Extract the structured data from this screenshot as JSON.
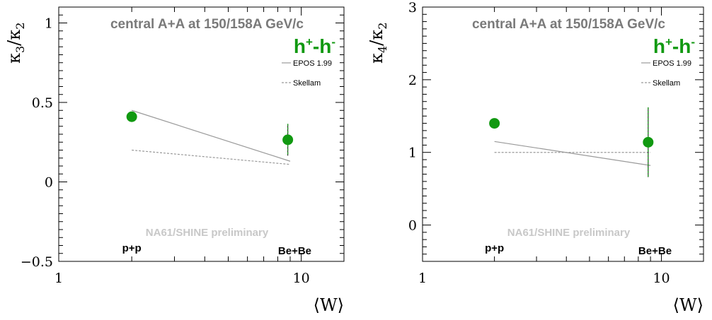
{
  "chart_data": [
    {
      "type": "scatter",
      "xlabel": "⟨W⟩",
      "ylabel_main": "κ",
      "ylabel_num_sub": "3",
      "ylabel_slash": "/",
      "ylabel_den_sub": "2",
      "x_scale": "log",
      "xlim": [
        1,
        15
      ],
      "ylim": [
        -0.5,
        1.1
      ],
      "x_tick_labels": [
        "1",
        "10"
      ],
      "y_ticks": [
        -0.5,
        0,
        0.5,
        1
      ],
      "y_tick_labels": [
        "−0.5",
        "0",
        "0.5",
        "1"
      ],
      "title": "central A+A at 150/158A GeV/c",
      "particle_label_base": "h",
      "particle_label_sup1": "+",
      "particle_label_mid": "-h",
      "particle_label_sup2": "-",
      "watermark": "NA61/SHINE preliminary",
      "system_labels": [
        "p+p",
        "Be+Be"
      ],
      "legend": [
        "EPOS 1.99",
        "Skellam"
      ],
      "points": [
        {
          "x": 2.0,
          "y": 0.41,
          "err": 0.0
        },
        {
          "x": 8.8,
          "y": 0.265,
          "err": 0.1
        }
      ],
      "series": [
        {
          "name": "EPOS 1.99",
          "style": "solid",
          "x": [
            2.0,
            9.0
          ],
          "y": [
            0.45,
            0.13
          ]
        },
        {
          "name": "Skellam",
          "style": "dashed",
          "x": [
            2.0,
            9.0
          ],
          "y": [
            0.2,
            0.11
          ]
        }
      ],
      "colors": {
        "point": "#119911",
        "model": "#999999",
        "text_gray": "#7a7a7a",
        "watermark": "#c8c8c8"
      }
    },
    {
      "type": "scatter",
      "xlabel": "⟨W⟩",
      "ylabel_main": "κ",
      "ylabel_num_sub": "4",
      "ylabel_slash": "/",
      "ylabel_den_sub": "2",
      "x_scale": "log",
      "xlim": [
        1,
        15
      ],
      "ylim": [
        -0.5,
        3
      ],
      "x_tick_labels": [
        "1",
        "10"
      ],
      "y_ticks": [
        0,
        1,
        2,
        3
      ],
      "y_tick_labels": [
        "0",
        "1",
        "2",
        "3"
      ],
      "title": "central A+A at 150/158A GeV/c",
      "particle_label_base": "h",
      "particle_label_sup1": "+",
      "particle_label_mid": "-h",
      "particle_label_sup2": "-",
      "watermark": "NA61/SHINE preliminary",
      "system_labels": [
        "p+p",
        "Be+Be"
      ],
      "legend": [
        "EPOS 1.99",
        "Skellam"
      ],
      "points": [
        {
          "x": 2.0,
          "y": 1.4,
          "err": 0.0
        },
        {
          "x": 8.8,
          "y": 1.14,
          "err": 0.48
        }
      ],
      "series": [
        {
          "name": "EPOS 1.99",
          "style": "solid",
          "x": [
            2.0,
            9.0
          ],
          "y": [
            1.15,
            0.82
          ]
        },
        {
          "name": "Skellam",
          "style": "dashed",
          "x": [
            2.0,
            9.0
          ],
          "y": [
            1.0,
            1.0
          ]
        }
      ],
      "colors": {
        "point": "#119911",
        "model": "#999999",
        "text_gray": "#7a7a7a",
        "watermark": "#c8c8c8"
      }
    }
  ]
}
